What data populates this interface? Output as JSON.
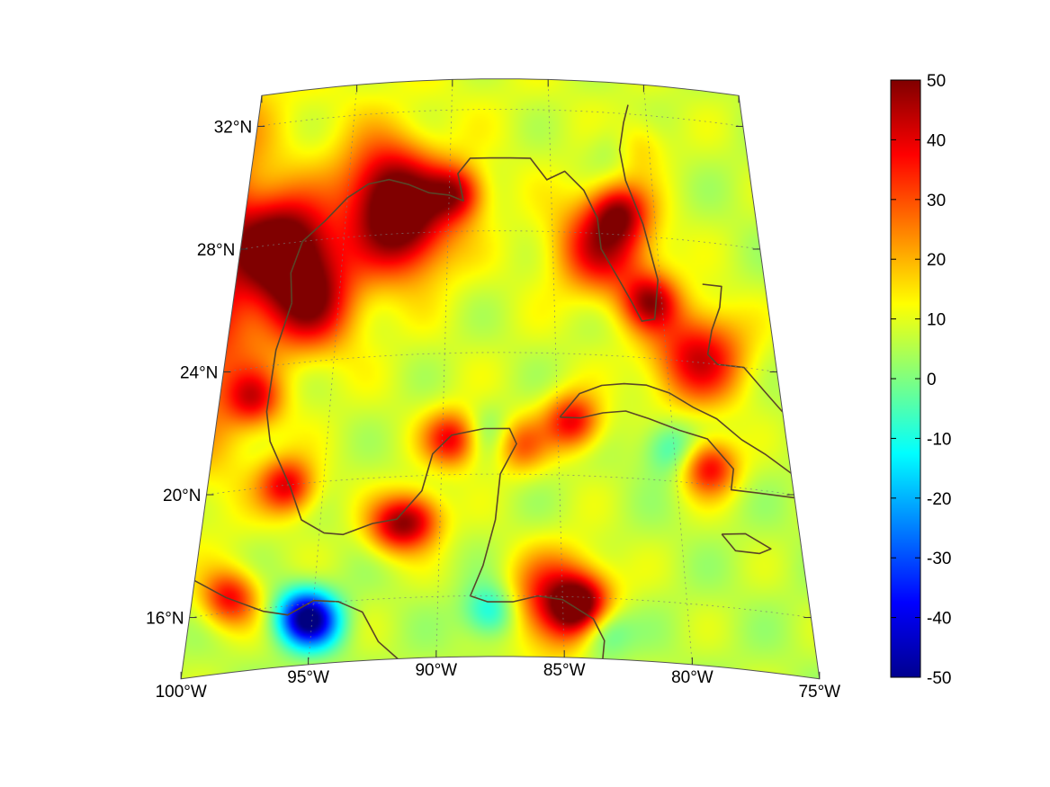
{
  "map": {
    "projection": "conic",
    "lon_range": [
      -100,
      -75
    ],
    "lat_range": [
      14,
      33
    ],
    "lon_ticks": [
      {
        "value": -100,
        "label": "100°W"
      },
      {
        "value": -95,
        "label": "95°W"
      },
      {
        "value": -90,
        "label": "90°W"
      },
      {
        "value": -85,
        "label": "85°W"
      },
      {
        "value": -80,
        "label": "80°W"
      },
      {
        "value": -75,
        "label": "75°W"
      }
    ],
    "lat_ticks": [
      {
        "value": 32,
        "label": "32°N"
      },
      {
        "value": 28,
        "label": "28°N"
      },
      {
        "value": 24,
        "label": "24°N"
      },
      {
        "value": 20,
        "label": "20°N"
      },
      {
        "value": 16,
        "label": "16°N"
      }
    ],
    "grid": true,
    "coastline_color": "#5a4528",
    "colormap": "jet"
  },
  "colorbar": {
    "min": -50,
    "max": 50,
    "ticks": [
      "50",
      "40",
      "30",
      "20",
      "10",
      "0",
      "-10",
      "-20",
      "-30",
      "-40",
      "-50"
    ],
    "placement": "right"
  },
  "chart_data": {
    "type": "heatmap",
    "title": "",
    "xlabel": "",
    "ylabel": "",
    "value_range": [
      -50,
      50
    ],
    "background_value": 6,
    "hotspots": [
      {
        "lon": -97.8,
        "lat": 28.0,
        "value": 50
      },
      {
        "lon": -96.5,
        "lat": 26.0,
        "value": 42
      },
      {
        "lon": -98.5,
        "lat": 23.0,
        "value": 30
      },
      {
        "lon": -93.0,
        "lat": 29.6,
        "value": 42
      },
      {
        "lon": -92.2,
        "lat": 28.0,
        "value": 40
      },
      {
        "lon": -89.7,
        "lat": 29.3,
        "value": 36
      },
      {
        "lon": -82.6,
        "lat": 27.6,
        "value": 40
      },
      {
        "lon": -81.8,
        "lat": 28.8,
        "value": 32
      },
      {
        "lon": -80.6,
        "lat": 25.9,
        "value": 38
      },
      {
        "lon": -80.8,
        "lat": 31.0,
        "value": 22
      },
      {
        "lon": -78.6,
        "lat": 24.2,
        "value": 40
      },
      {
        "lon": -78.6,
        "lat": 20.6,
        "value": 38
      },
      {
        "lon": -84.4,
        "lat": 21.8,
        "value": 38
      },
      {
        "lon": -96.6,
        "lat": 20.0,
        "value": 38
      },
      {
        "lon": -91.0,
        "lat": 18.6,
        "value": 32
      },
      {
        "lon": -89.6,
        "lat": 21.2,
        "value": 38
      },
      {
        "lon": -86.8,
        "lat": 21.0,
        "value": 28
      },
      {
        "lon": -92.0,
        "lat": 18.4,
        "value": 32
      },
      {
        "lon": -98.5,
        "lat": 16.5,
        "value": 36
      },
      {
        "lon": -85.2,
        "lat": 15.8,
        "value": 42
      },
      {
        "lon": -84.3,
        "lat": 15.7,
        "value": 38
      },
      {
        "lon": -95.4,
        "lat": 15.6,
        "value": -36
      },
      {
        "lon": -94.8,
        "lat": 15.4,
        "value": -15
      },
      {
        "lon": -87.9,
        "lat": 15.5,
        "value": -16
      },
      {
        "lon": -83.6,
        "lat": 15.0,
        "value": -18
      },
      {
        "lon": -80.2,
        "lat": 21.1,
        "value": -10
      },
      {
        "lon": -81.6,
        "lat": 30.9,
        "value": -6
      },
      {
        "lon": -88.0,
        "lat": 21.3,
        "value": -6
      }
    ]
  }
}
